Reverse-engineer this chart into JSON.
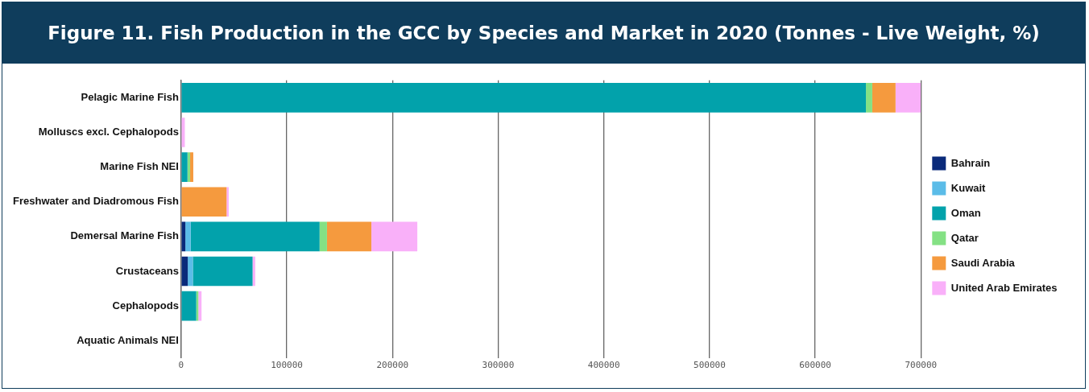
{
  "chart_data": {
    "type": "bar",
    "orientation": "horizontal",
    "stacked": true,
    "title": "Figure 11. Fish Production in the GCC by Species and Market in 2020 (Tonnes - Live Weight, %)",
    "categories": [
      "Pelagic Marine Fish",
      "Molluscs excl. Cephalopods",
      "Marine Fish NEI",
      "Freshwater and Diadromous Fish",
      "Demersal Marine Fish",
      "Crustaceans",
      "Cephalopods",
      "Aquatic Animals NEI"
    ],
    "series": [
      {
        "name": "Bahrain",
        "color": "#0a2a7a",
        "values": [
          0,
          0,
          0,
          0,
          4000,
          6300,
          0,
          0
        ]
      },
      {
        "name": "Kuwait",
        "color": "#5bbce8",
        "values": [
          0,
          0,
          0,
          0,
          5000,
          4800,
          0,
          0
        ]
      },
      {
        "name": "Oman",
        "color": "#02a2ab",
        "values": [
          648000,
          0,
          6000,
          0,
          122000,
          56500,
          14300,
          0
        ]
      },
      {
        "name": "Qatar",
        "color": "#84e184",
        "values": [
          6000,
          0,
          2500,
          0,
          7000,
          0,
          2000,
          0
        ]
      },
      {
        "name": "Saudi Arabia",
        "color": "#f59a3e",
        "values": [
          22000,
          0,
          3000,
          43000,
          42000,
          0,
          0,
          0
        ]
      },
      {
        "name": "United Arab Emirates",
        "color": "#f9b0f9",
        "values": [
          24000,
          3500,
          0,
          2000,
          43500,
          2500,
          3000,
          0
        ]
      }
    ],
    "xlim": [
      0,
      700000
    ],
    "xticks": [
      0,
      100000,
      200000,
      300000,
      400000,
      500000,
      600000,
      700000
    ],
    "grid": "x",
    "legend": "right"
  }
}
